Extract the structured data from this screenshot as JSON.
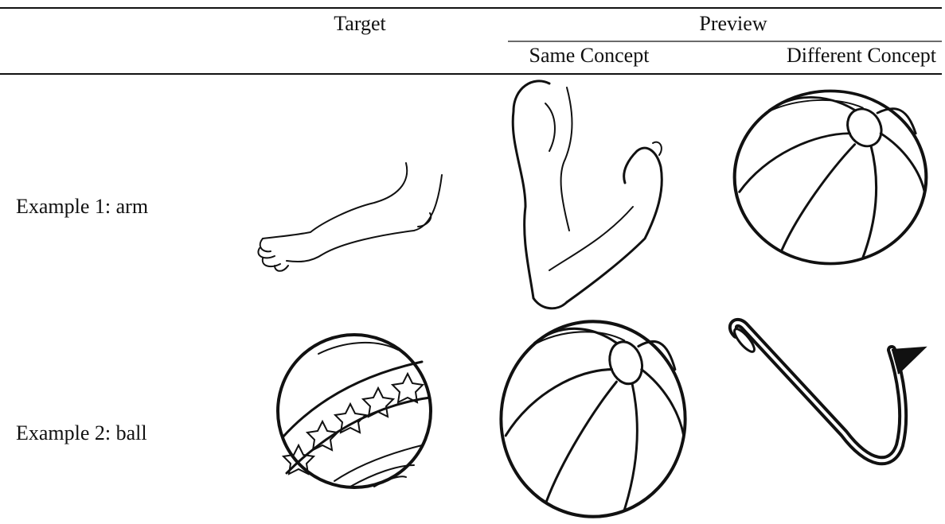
{
  "header": {
    "target": "Target",
    "preview": "Preview",
    "same_concept": "Same Concept",
    "different_concept": "Different Concept"
  },
  "rows": [
    {
      "label": "Example 1: arm"
    },
    {
      "label": "Example 2: ball"
    }
  ]
}
